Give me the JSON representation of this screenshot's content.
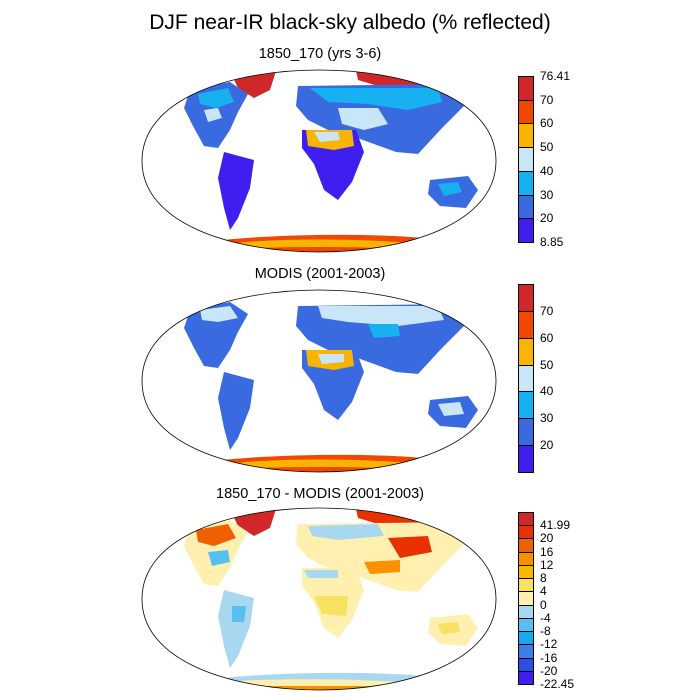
{
  "title": "DJF near-IR black-sky albedo (% reflected)",
  "panels": [
    {
      "id": "model",
      "title": "1850_170 (yrs 3-6)",
      "colorbar": {
        "colors": [
          "#3f1ff0",
          "#3a6ae0",
          "#17b0f0",
          "#c8e6f8",
          "#f8b400",
          "#f04800",
          "#d02828"
        ],
        "labels": [
          "8.85",
          "20",
          "30",
          "40",
          "50",
          "60",
          "70",
          "76.41"
        ]
      }
    },
    {
      "id": "modis",
      "title": "MODIS (2001-2003)",
      "colorbar": {
        "colors": [
          "#3f1ff0",
          "#3a6ae0",
          "#17b0f0",
          "#c8e6f8",
          "#f8b400",
          "#f04800",
          "#d02828"
        ],
        "labels": [
          "",
          "20",
          "30",
          "40",
          "50",
          "60",
          "70",
          ""
        ]
      }
    },
    {
      "id": "diff",
      "title": "1850_170 - MODIS (2001-2003)",
      "colorbar": {
        "colors": [
          "#3f1ff0",
          "#2850e8",
          "#3a80e8",
          "#18a8f0",
          "#58c0f0",
          "#a8d8f0",
          "#fff0b0",
          "#f8e060",
          "#f8b800",
          "#f89000",
          "#f06000",
          "#e83000",
          "#d02828"
        ],
        "labels": [
          "-22.45",
          "-20",
          "-16",
          "-12",
          "-8",
          "-4",
          "0",
          "4",
          "8",
          "12",
          "16",
          "20",
          "41.99"
        ]
      }
    }
  ]
}
